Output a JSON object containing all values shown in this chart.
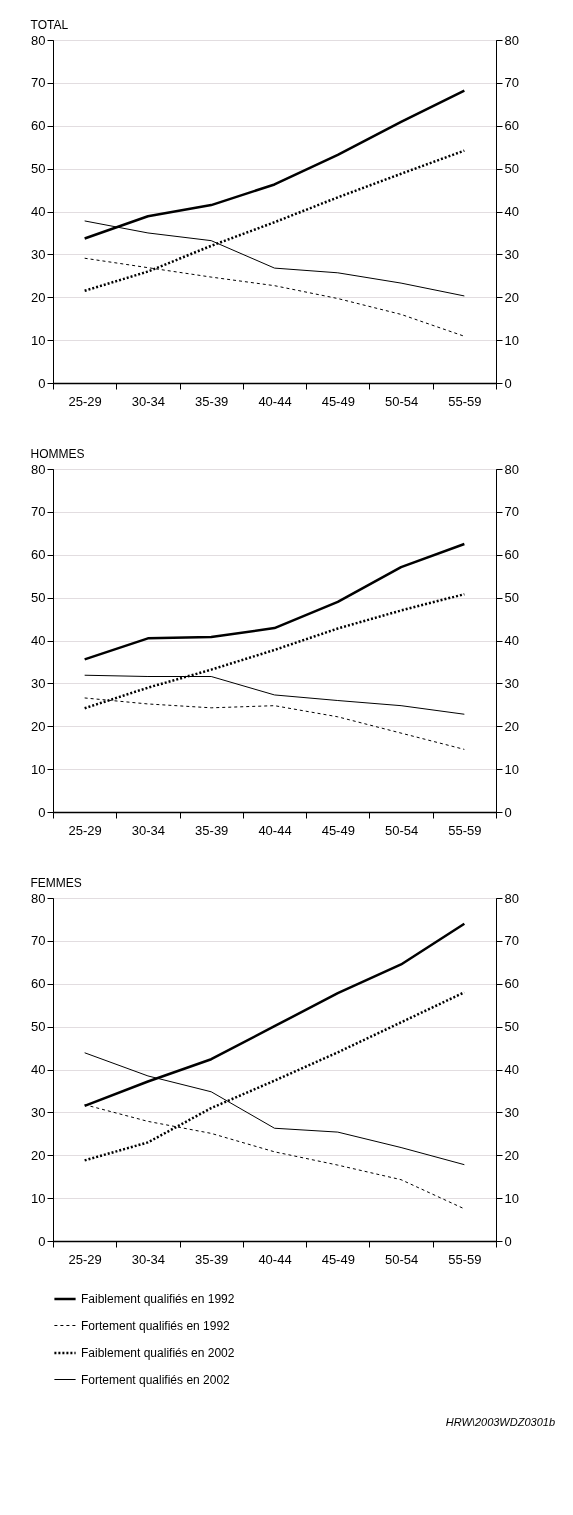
{
  "chart_data": [
    {
      "type": "line",
      "title": "TOTAL",
      "categories": [
        "25-29",
        "30-34",
        "35-39",
        "40-44",
        "45-49",
        "50-54",
        "55-59"
      ],
      "ylim": [
        0,
        80
      ],
      "yticks": [
        0,
        10,
        20,
        30,
        40,
        50,
        60,
        70,
        80
      ],
      "y2lim": [
        0,
        80
      ],
      "y2ticks": [
        0,
        10,
        20,
        30,
        40,
        50,
        60,
        70,
        80
      ],
      "grid": "y",
      "legend": "bottom",
      "series": [
        {
          "name": "Faiblement qualifiés en 1992",
          "color": "#000000",
          "line_style": "solid",
          "values": [
            33.7,
            38.9,
            41.5,
            46.3,
            53.2,
            60.9,
            68.2
          ]
        },
        {
          "name": "Fortement qualifiés en 1992",
          "color": "#000000",
          "line_style": "dashed",
          "values": [
            29.1,
            26.9,
            24.7,
            22.7,
            19.7,
            16.0,
            10.9
          ]
        },
        {
          "name": "Faiblement qualifiés en 2002",
          "color": "#000000",
          "line_style": "dotted",
          "values": [
            21.5,
            26.0,
            32.0,
            37.5,
            43.3,
            48.8,
            54.2
          ]
        },
        {
          "name": "Fortement qualifiés en 2002",
          "color": "#000000",
          "line_style": "solid",
          "values": [
            37.8,
            35.0,
            33.2,
            26.8,
            25.7,
            23.3,
            20.3
          ]
        }
      ]
    },
    {
      "type": "line",
      "title": "HOMMES",
      "categories": [
        "25-29",
        "30-34",
        "35-39",
        "40-44",
        "45-49",
        "50-54",
        "55-59"
      ],
      "ylim": [
        0,
        80
      ],
      "yticks": [
        0,
        10,
        20,
        30,
        40,
        50,
        60,
        70,
        80
      ],
      "y2lim": [
        0,
        80
      ],
      "y2ticks": [
        0,
        10,
        20,
        30,
        40,
        50,
        60,
        70,
        80
      ],
      "grid": "y",
      "series": [
        {
          "name": "Faiblement qualifiés en 1992",
          "color": "#000000",
          "line_style": "solid",
          "values": [
            35.6,
            40.5,
            40.8,
            42.9,
            49.0,
            57.1,
            62.5
          ]
        },
        {
          "name": "Fortement qualifiés en 1992",
          "color": "#000000",
          "line_style": "dashed",
          "values": [
            26.6,
            25.2,
            24.3,
            24.8,
            22.2,
            18.4,
            14.6
          ]
        },
        {
          "name": "Faiblement qualifiés en 2002",
          "color": "#000000",
          "line_style": "dotted",
          "values": [
            24.2,
            29.0,
            33.2,
            37.8,
            42.8,
            47.0,
            50.8
          ]
        },
        {
          "name": "Fortement qualifiés en 2002",
          "color": "#000000",
          "line_style": "solid",
          "values": [
            31.9,
            31.6,
            31.6,
            27.3,
            26.0,
            24.8,
            22.8
          ]
        }
      ]
    },
    {
      "type": "line",
      "title": "FEMMES",
      "categories": [
        "25-29",
        "30-34",
        "35-39",
        "40-44",
        "45-49",
        "50-54",
        "55-59"
      ],
      "ylim": [
        0,
        80
      ],
      "yticks": [
        0,
        10,
        20,
        30,
        40,
        50,
        60,
        70,
        80
      ],
      "y2lim": [
        0,
        80
      ],
      "y2ticks": [
        0,
        10,
        20,
        30,
        40,
        50,
        60,
        70,
        80
      ],
      "grid": "y",
      "annotations": [
        "HRW\\2003WDZ0301b"
      ],
      "series": [
        {
          "name": "Faiblement qualifiés en 1992",
          "color": "#000000",
          "line_style": "solid",
          "values": [
            31.5,
            37.2,
            42.4,
            50.1,
            57.8,
            64.5,
            74.0
          ]
        },
        {
          "name": "Fortement qualifiés en 1992",
          "color": "#000000",
          "line_style": "dashed",
          "values": [
            31.8,
            27.9,
            25.1,
            20.8,
            17.7,
            14.3,
            7.5
          ]
        },
        {
          "name": "Faiblement qualifiés en 2002",
          "color": "#000000",
          "line_style": "dotted",
          "values": [
            18.8,
            23.0,
            31.0,
            37.4,
            44.0,
            51.0,
            58.0
          ]
        },
        {
          "name": "Fortement qualifiés en 2002",
          "color": "#000000",
          "line_style": "solid",
          "values": [
            43.9,
            38.5,
            34.8,
            26.3,
            25.4,
            21.8,
            17.8
          ]
        }
      ]
    }
  ]
}
